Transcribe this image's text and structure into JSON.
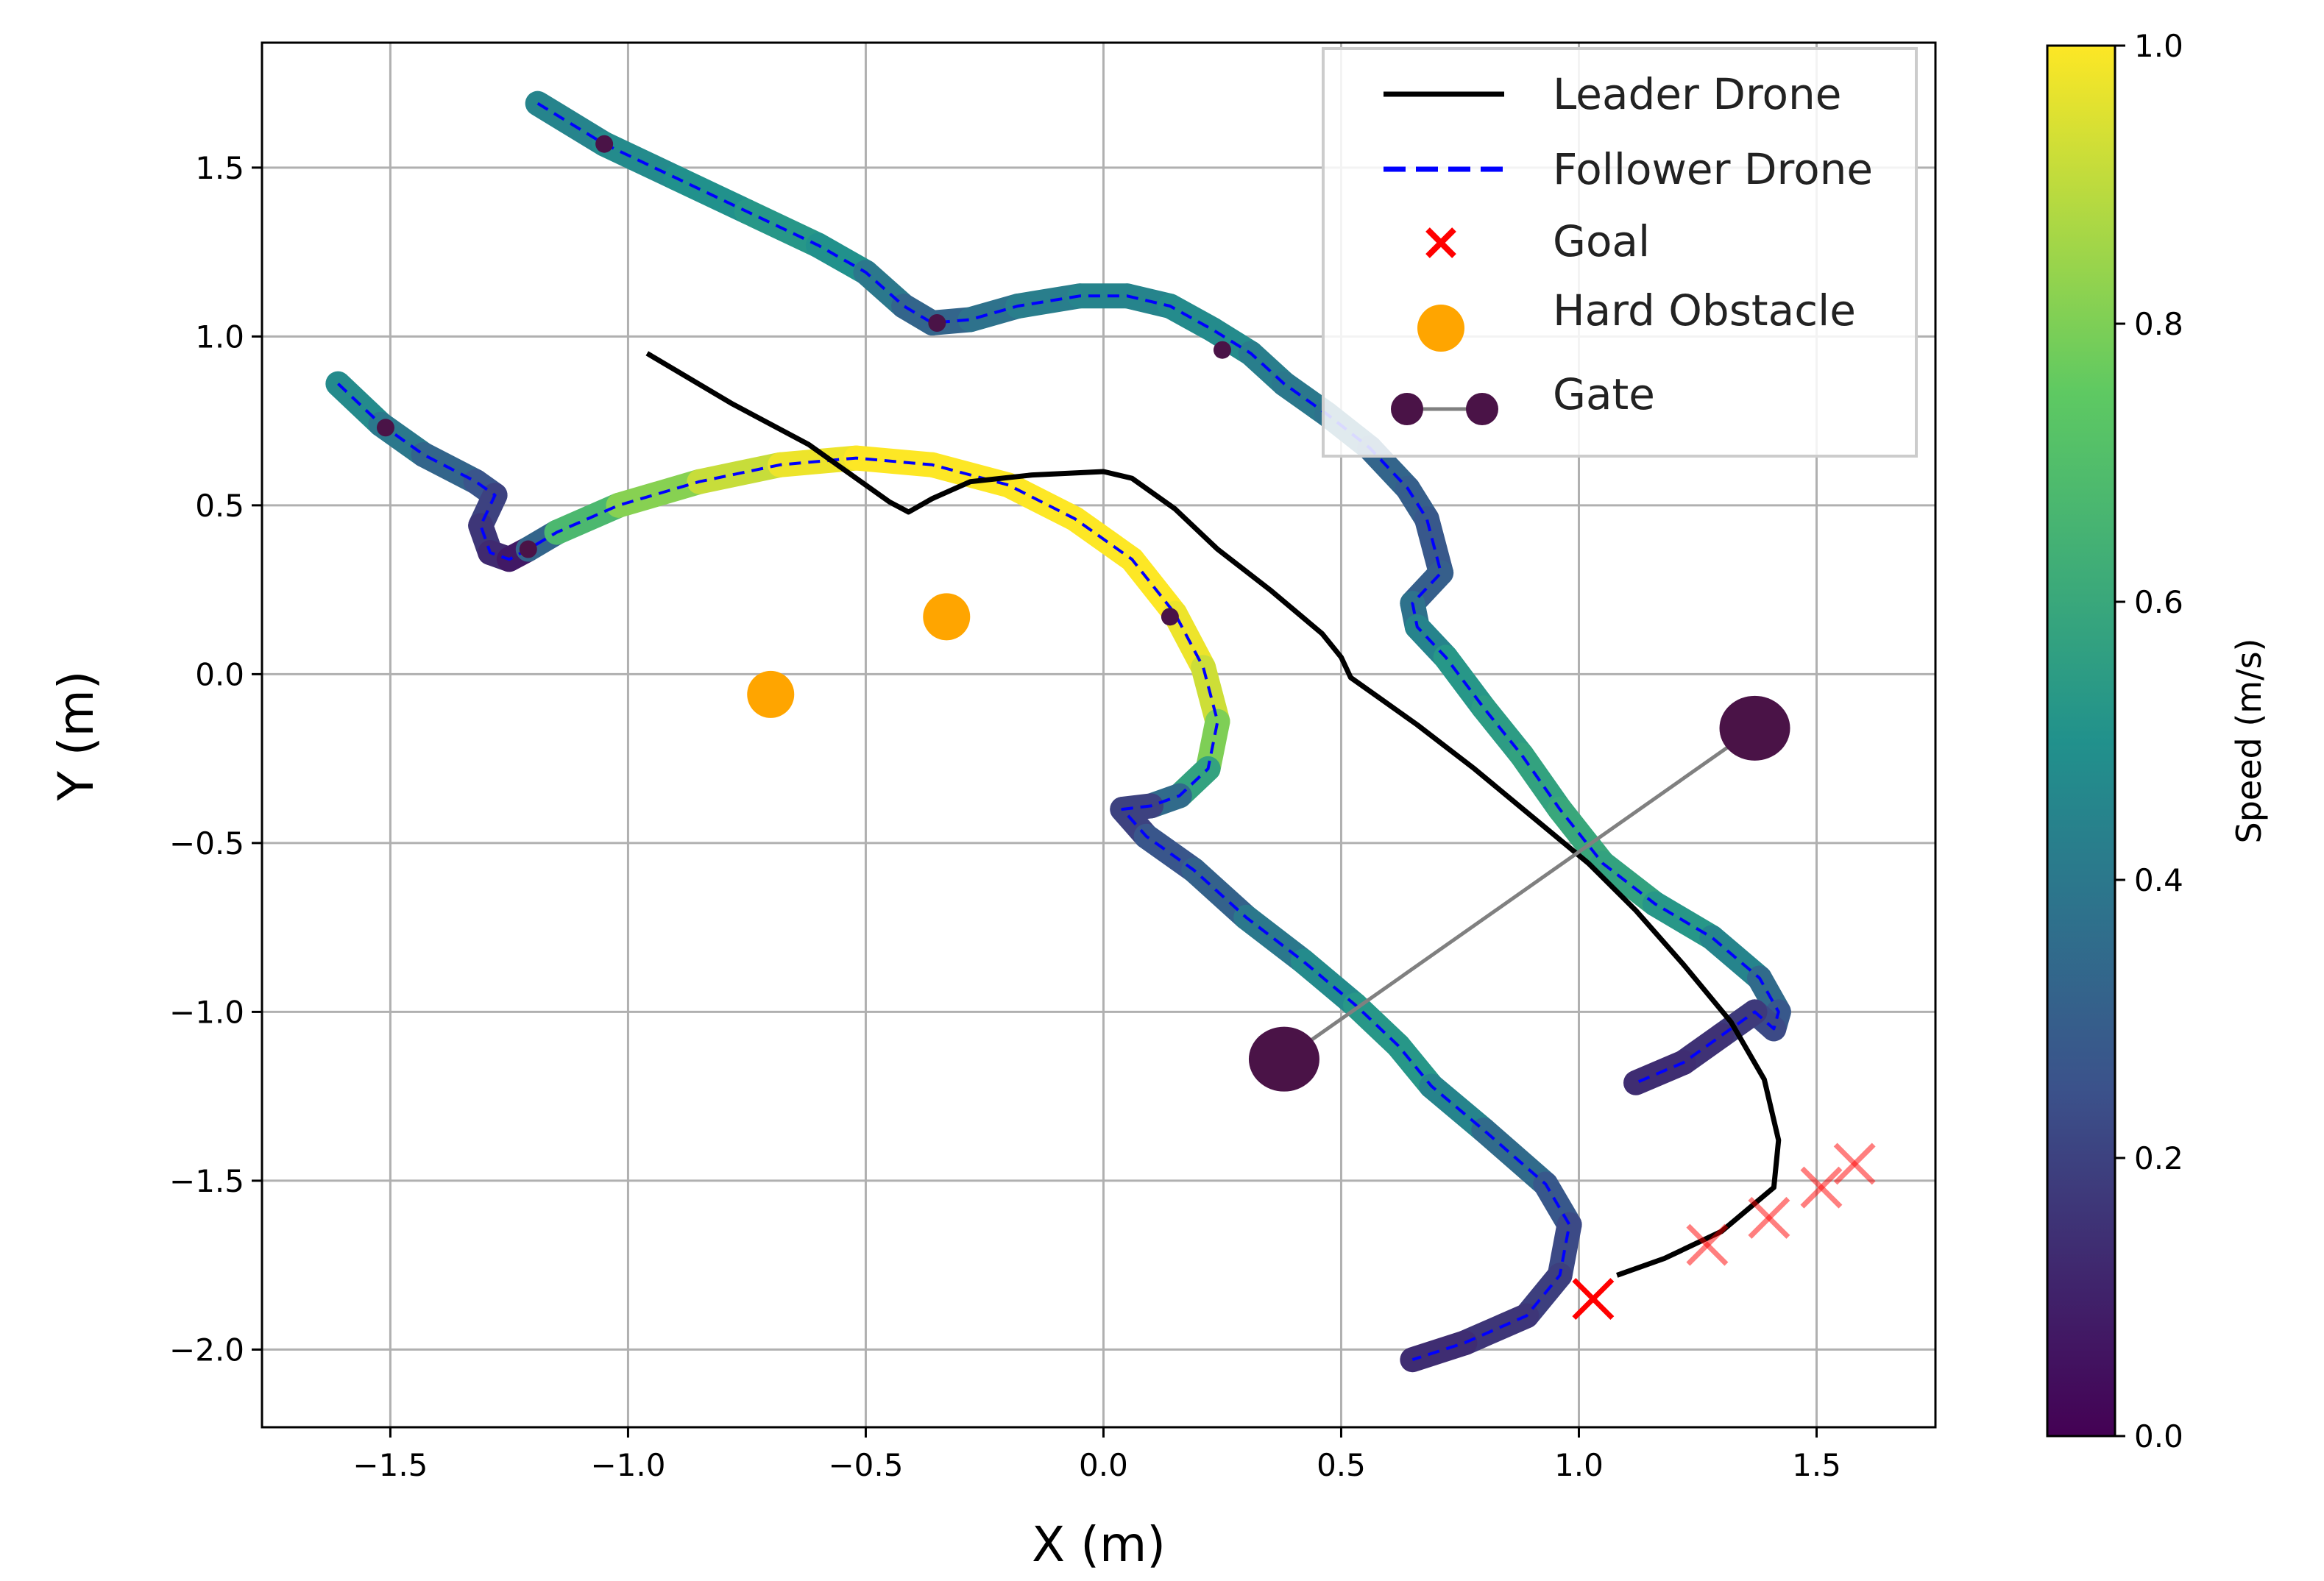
{
  "chart_data": {
    "type": "line",
    "xlabel": "X (m)",
    "ylabel": "Y (m)",
    "xlim": [
      -1.77,
      1.75
    ],
    "ylim": [
      -2.23,
      1.87
    ],
    "xticks": [
      -1.5,
      -1.0,
      -0.5,
      0.0,
      0.5,
      1.0,
      1.5
    ],
    "xtick_labels": [
      "−1.5",
      "−1.0",
      "−0.5",
      "0.0",
      "0.5",
      "1.0",
      "1.5"
    ],
    "yticks": [
      -2.0,
      -1.5,
      -1.0,
      -0.5,
      0.0,
      0.5,
      1.0,
      1.5
    ],
    "ytick_labels": [
      "−2.0",
      "−1.5",
      "−1.0",
      "−0.5",
      "0.0",
      "0.5",
      "1.0",
      "1.5"
    ],
    "grid": true,
    "legend_position": "top-right",
    "legend": {
      "leader": "Leader Drone",
      "follower": "Follower Drone",
      "goal": "Goal",
      "hard_obstacle": "Hard Obstacle",
      "gate": "Gate"
    },
    "colorbar": {
      "label": "Speed (m/s)",
      "range": [
        0.0,
        1.0
      ],
      "ticks": [
        0.0,
        0.2,
        0.4,
        0.6,
        0.8,
        1.0
      ],
      "tick_labels": [
        "0.0",
        "0.2",
        "0.4",
        "0.6",
        "0.8",
        "1.0"
      ],
      "colormap": [
        "#440154",
        "#3b528b",
        "#21918c",
        "#5ec962",
        "#fde725"
      ]
    },
    "colors": {
      "leader": "#000000",
      "follower_dashed": "#0000ff",
      "goal": "#ff0000",
      "hard_obstacle": "#ffa500",
      "gate_marker": "#4a1347",
      "gate_line": "#808080",
      "grid": "#b0b0b0"
    },
    "leader_path": [
      [
        -0.96,
        0.95
      ],
      [
        -0.78,
        0.8
      ],
      [
        -0.62,
        0.68
      ],
      [
        -0.52,
        0.58
      ],
      [
        -0.45,
        0.51
      ],
      [
        -0.41,
        0.48
      ],
      [
        -0.36,
        0.52
      ],
      [
        -0.28,
        0.57
      ],
      [
        -0.15,
        0.59
      ],
      [
        0.0,
        0.6
      ],
      [
        0.06,
        0.58
      ],
      [
        0.15,
        0.49
      ],
      [
        0.24,
        0.37
      ],
      [
        0.35,
        0.25
      ],
      [
        0.46,
        0.12
      ],
      [
        0.5,
        0.05
      ],
      [
        0.52,
        -0.01
      ],
      [
        0.58,
        -0.07
      ],
      [
        0.66,
        -0.15
      ],
      [
        0.78,
        -0.28
      ],
      [
        0.9,
        -0.42
      ],
      [
        1.02,
        -0.56
      ],
      [
        1.12,
        -0.7
      ],
      [
        1.22,
        -0.86
      ],
      [
        1.32,
        -1.03
      ],
      [
        1.39,
        -1.2
      ],
      [
        1.42,
        -1.38
      ],
      [
        1.41,
        -1.52
      ],
      [
        1.3,
        -1.65
      ],
      [
        1.18,
        -1.73
      ],
      [
        1.08,
        -1.78
      ]
    ],
    "follower_paths": [
      {
        "points": [
          [
            -1.61,
            0.86
          ],
          [
            -1.52,
            0.74
          ],
          [
            -1.43,
            0.65
          ],
          [
            -1.32,
            0.57
          ],
          [
            -1.28,
            0.53
          ],
          [
            -1.31,
            0.44
          ],
          [
            -1.29,
            0.36
          ],
          [
            -1.25,
            0.34
          ],
          [
            -1.21,
            0.37
          ],
          [
            -1.15,
            0.42
          ],
          [
            -1.02,
            0.5
          ],
          [
            -0.85,
            0.57
          ],
          [
            -0.68,
            0.62
          ],
          [
            -0.52,
            0.64
          ],
          [
            -0.36,
            0.62
          ],
          [
            -0.2,
            0.56
          ],
          [
            -0.06,
            0.46
          ],
          [
            0.06,
            0.34
          ],
          [
            0.15,
            0.18
          ],
          [
            0.21,
            0.02
          ],
          [
            0.24,
            -0.14
          ],
          [
            0.22,
            -0.28
          ],
          [
            0.16,
            -0.36
          ],
          [
            0.1,
            -0.39
          ],
          [
            0.04,
            -0.4
          ],
          [
            0.09,
            -0.48
          ],
          [
            0.19,
            -0.58
          ],
          [
            0.3,
            -0.72
          ],
          [
            0.42,
            -0.85
          ],
          [
            0.53,
            -0.98
          ],
          [
            0.62,
            -1.1
          ],
          [
            0.69,
            -1.22
          ],
          [
            0.8,
            -1.35
          ],
          [
            0.93,
            -1.51
          ],
          [
            0.98,
            -1.63
          ],
          [
            0.96,
            -1.78
          ],
          [
            0.89,
            -1.9
          ],
          [
            0.76,
            -1.98
          ],
          [
            0.65,
            -2.03
          ]
        ],
        "speeds": [
          0.5,
          0.45,
          0.35,
          0.3,
          0.22,
          0.18,
          0.15,
          0.1,
          0.05,
          0.6,
          0.75,
          0.88,
          0.95,
          1.0,
          1.0,
          1.0,
          1.0,
          1.0,
          1.0,
          0.95,
          0.9,
          0.7,
          0.45,
          0.25,
          0.15,
          0.25,
          0.28,
          0.35,
          0.45,
          0.5,
          0.55,
          0.5,
          0.4,
          0.3,
          0.25,
          0.2,
          0.18,
          0.15,
          0.12
        ]
      },
      {
        "points": [
          [
            -1.19,
            1.69
          ],
          [
            -1.05,
            1.57
          ],
          [
            -0.9,
            1.47
          ],
          [
            -0.75,
            1.37
          ],
          [
            -0.6,
            1.27
          ],
          [
            -0.5,
            1.19
          ],
          [
            -0.42,
            1.09
          ],
          [
            -0.36,
            1.04
          ],
          [
            -0.28,
            1.05
          ],
          [
            -0.18,
            1.09
          ],
          [
            -0.05,
            1.12
          ],
          [
            0.05,
            1.12
          ],
          [
            0.14,
            1.09
          ],
          [
            0.23,
            1.02
          ],
          [
            0.31,
            0.95
          ],
          [
            0.38,
            0.86
          ],
          [
            0.47,
            0.77
          ],
          [
            0.56,
            0.67
          ],
          [
            0.64,
            0.55
          ],
          [
            0.68,
            0.46
          ],
          [
            0.71,
            0.3
          ],
          [
            0.65,
            0.21
          ],
          [
            0.66,
            0.14
          ],
          [
            0.72,
            0.05
          ],
          [
            0.8,
            -0.1
          ],
          [
            0.88,
            -0.24
          ],
          [
            0.96,
            -0.4
          ],
          [
            1.05,
            -0.56
          ],
          [
            1.16,
            -0.68
          ],
          [
            1.28,
            -0.78
          ],
          [
            1.38,
            -0.9
          ],
          [
            1.42,
            -1.0
          ],
          [
            1.41,
            -1.05
          ],
          [
            1.37,
            -1.0
          ],
          [
            1.3,
            -1.07
          ],
          [
            1.22,
            -1.15
          ],
          [
            1.12,
            -1.21
          ]
        ],
        "speeds": [
          0.45,
          0.45,
          0.5,
          0.5,
          0.55,
          0.45,
          0.35,
          0.3,
          0.35,
          0.4,
          0.45,
          0.45,
          0.45,
          0.5,
          0.45,
          0.4,
          0.4,
          0.35,
          0.3,
          0.3,
          0.25,
          0.35,
          0.4,
          0.5,
          0.55,
          0.55,
          0.6,
          0.6,
          0.55,
          0.5,
          0.4,
          0.3,
          0.25,
          0.2,
          0.15,
          0.15,
          0.12
        ]
      }
    ],
    "follower_waypoints": [
      [
        -1.51,
        0.73
      ],
      [
        -1.21,
        0.37
      ],
      [
        -1.05,
        1.57
      ],
      [
        -0.35,
        1.04
      ],
      [
        0.14,
        0.17
      ],
      [
        0.25,
        0.96
      ]
    ],
    "hard_obstacles": [
      [
        -0.7,
        -0.06
      ],
      [
        -0.33,
        0.17
      ],
      [
        1.37,
        -0.18
      ]
    ],
    "gate": [
      [
        0.38,
        -1.14
      ],
      [
        1.37,
        -0.16
      ]
    ],
    "goals": [
      {
        "x": 1.03,
        "y": -1.85,
        "alpha": 1.0
      },
      {
        "x": 1.27,
        "y": -1.69,
        "alpha": 0.5
      },
      {
        "x": 1.4,
        "y": -1.61,
        "alpha": 0.5
      },
      {
        "x": 1.51,
        "y": -1.52,
        "alpha": 0.5
      },
      {
        "x": 1.58,
        "y": -1.45,
        "alpha": 0.5
      }
    ]
  }
}
